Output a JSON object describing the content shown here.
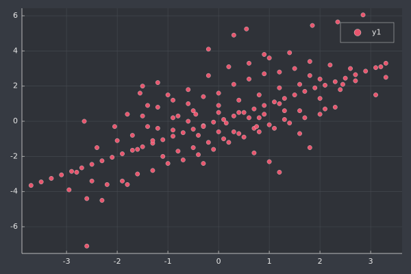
{
  "chart_data": {
    "type": "scatter",
    "series": [
      {
        "name": "y1",
        "color": "#e8566e",
        "x": [
          -3.7,
          -3.5,
          -3.3,
          -3.1,
          -2.9,
          -2.7,
          -2.5,
          -2.3,
          -2.1,
          -1.9,
          -1.7,
          -1.5,
          -1.3,
          -1.1,
          -0.9,
          -0.7,
          -0.5,
          -0.3,
          -0.1,
          0.1,
          0.3,
          0.5,
          0.7,
          0.9,
          1.1,
          1.3,
          1.5,
          1.7,
          1.9,
          2.1,
          2.3,
          2.5,
          2.7,
          2.9,
          3.1,
          3.3,
          -2.6,
          2.85,
          1.85,
          0.3,
          0.55,
          -0.2,
          2.35,
          -2.65,
          -2.6,
          -2.95,
          3.1,
          1.8,
          1.2,
          -2.3,
          2.45,
          3.3,
          -1.2,
          -1.55,
          -2.05,
          -1.8,
          -1.4,
          -1.0,
          -0.6,
          -0.2,
          0.2,
          0.6,
          1.0,
          1.4,
          1.8,
          2.2,
          2.6,
          -2.2,
          -1.9,
          -1.6,
          -1.3,
          -1.0,
          -0.7,
          -0.4,
          -0.1,
          0.2,
          0.5,
          0.8,
          1.1,
          1.4,
          1.7,
          2.0,
          2.3,
          -1.5,
          -1.2,
          -0.9,
          -0.6,
          -0.3,
          0.0,
          0.3,
          0.6,
          0.9,
          1.2,
          1.5,
          1.8,
          -1.1,
          -0.8,
          -0.5,
          -0.2,
          0.1,
          0.4,
          0.7,
          1.0,
          1.3,
          -1.7,
          -1.4,
          -0.9,
          -0.5,
          0.0,
          0.4,
          0.8,
          1.2,
          1.6,
          2.0,
          -2.4,
          -2.0,
          -1.6,
          -1.2,
          -0.8,
          -0.4,
          0.0,
          0.4,
          0.8,
          1.2,
          1.6,
          2.0,
          2.4,
          -0.6,
          -0.3,
          0.0,
          0.3,
          0.6,
          -0.9,
          0.9,
          -1.3,
          1.3,
          0.15,
          -0.45,
          0.75,
          -2.8,
          -2.5,
          -1.8,
          1.0,
          0.7,
          1.6,
          2.1,
          -0.3,
          0.9,
          -1.5,
          2.7,
          3.2
        ],
        "values": [
          -3.65,
          -3.45,
          -3.25,
          -3.05,
          -2.85,
          -2.65,
          -2.45,
          -2.25,
          -2.05,
          -1.85,
          -1.65,
          -1.45,
          -1.25,
          -1.05,
          -0.85,
          -0.65,
          -0.45,
          -0.25,
          -0.05,
          0.1,
          0.3,
          0.5,
          0.7,
          0.9,
          1.1,
          1.3,
          1.5,
          1.7,
          1.9,
          2.05,
          2.25,
          2.45,
          2.65,
          2.85,
          3.05,
          3.3,
          -7.1,
          6.05,
          5.45,
          4.9,
          5.25,
          4.1,
          5.65,
          0.0,
          -4.4,
          -3.9,
          1.5,
          -1.5,
          -2.9,
          -4.5,
          2.1,
          2.5,
          2.2,
          1.6,
          -0.3,
          0.4,
          0.9,
          1.5,
          1.8,
          2.6,
          3.1,
          3.3,
          3.6,
          3.9,
          3.4,
          3.2,
          3.0,
          -3.6,
          -3.4,
          -3.0,
          -2.8,
          -2.4,
          -2.2,
          -1.9,
          -1.6,
          -1.2,
          -0.9,
          -0.6,
          -0.4,
          -0.1,
          0.2,
          0.4,
          0.8,
          0.3,
          0.8,
          1.2,
          1.0,
          1.4,
          1.6,
          2.1,
          2.4,
          2.7,
          2.8,
          3.0,
          2.6,
          -2.0,
          -1.7,
          -1.5,
          -1.2,
          -1.0,
          -0.7,
          -0.4,
          -0.2,
          0.1,
          -0.8,
          -0.3,
          0.2,
          0.6,
          0.9,
          1.2,
          1.5,
          1.9,
          2.1,
          2.4,
          -1.5,
          -1.1,
          -1.6,
          -0.4,
          0.3,
          -0.8,
          -0.6,
          0.5,
          0.2,
          1.0,
          0.6,
          1.3,
          1.8,
          0.0,
          -0.3,
          0.5,
          -0.6,
          0.2,
          -0.5,
          0.4,
          -1.1,
          0.6,
          -0.1,
          0.4,
          -0.3,
          -2.9,
          -3.4,
          -3.6,
          -2.3,
          -1.8,
          -0.7,
          0.7,
          -2.4,
          3.8,
          2.0,
          2.3,
          3.1
        ]
      }
    ],
    "xlim": [
      -3.88,
      3.62
    ],
    "xticks": [
      -3,
      -2,
      -1,
      0,
      1,
      2,
      3
    ],
    "ylim": [
      -7.52,
      6.43
    ],
    "yticks": [
      -6,
      -4,
      -2,
      0,
      2,
      4,
      6
    ],
    "grid": true,
    "legend": "top-right"
  }
}
